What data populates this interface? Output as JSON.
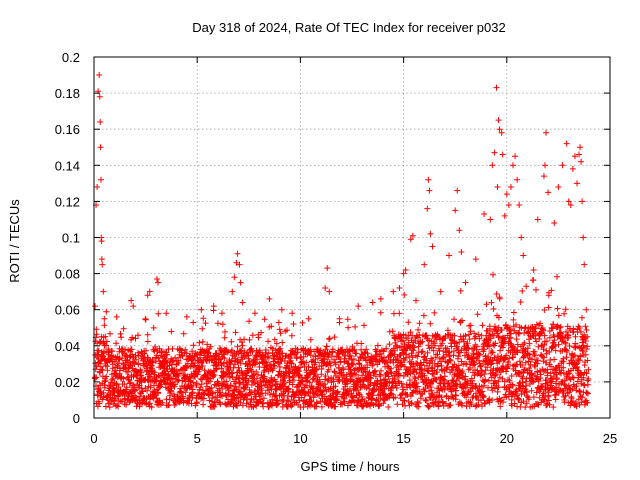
{
  "chart_data": {
    "type": "scatter",
    "title": "Day 318 of 2024, Rate Of TEC Index for receiver p032",
    "xlabel": "GPS time / hours",
    "ylabel": "ROTI / TECUs",
    "xlim": [
      0,
      25
    ],
    "ylim": [
      0,
      0.2
    ],
    "xticks": [
      0,
      5,
      10,
      15,
      20,
      25
    ],
    "xtick_labels": [
      "0",
      "5",
      "10",
      "15",
      "20",
      "25"
    ],
    "yticks": [
      0,
      0.02,
      0.04,
      0.06,
      0.08,
      0.1,
      0.12,
      0.14,
      0.16,
      0.18,
      0.2
    ],
    "ytick_labels": [
      "0",
      "0.02",
      "0.04",
      "0.06",
      "0.08",
      "0.1",
      "0.12",
      "0.14",
      "0.16",
      "0.18",
      "0.2"
    ],
    "grid": true,
    "marker": "+",
    "marker_color": "#ff0000",
    "series": [
      {
        "name": "ROTI",
        "points": [
          [
            0.05,
            0.062
          ],
          [
            0.1,
            0.118
          ],
          [
            0.15,
            0.128
          ],
          [
            0.2,
            0.181
          ],
          [
            0.25,
            0.19
          ],
          [
            0.28,
            0.178
          ],
          [
            0.3,
            0.164
          ],
          [
            0.32,
            0.15
          ],
          [
            0.34,
            0.132
          ],
          [
            0.35,
            0.1
          ],
          [
            0.37,
            0.098
          ],
          [
            0.38,
            0.088
          ],
          [
            0.4,
            0.085
          ],
          [
            0.45,
            0.07
          ],
          [
            0.5,
            0.055
          ],
          [
            1.1,
            0.056
          ],
          [
            1.8,
            0.065
          ],
          [
            1.9,
            0.062
          ],
          [
            2.6,
            0.068
          ],
          [
            2.7,
            0.07
          ],
          [
            3.05,
            0.077
          ],
          [
            3.1,
            0.075
          ],
          [
            3.5,
            0.058
          ],
          [
            4.5,
            0.056
          ],
          [
            5.2,
            0.06
          ],
          [
            5.8,
            0.062
          ],
          [
            6.2,
            0.058
          ],
          [
            6.7,
            0.07
          ],
          [
            6.8,
            0.078
          ],
          [
            6.9,
            0.086
          ],
          [
            6.95,
            0.091
          ],
          [
            7.05,
            0.085
          ],
          [
            7.1,
            0.075
          ],
          [
            7.2,
            0.064
          ],
          [
            7.8,
            0.058
          ],
          [
            8.5,
            0.066
          ],
          [
            9.1,
            0.06
          ],
          [
            9.6,
            0.058
          ],
          [
            10.4,
            0.055
          ],
          [
            11.2,
            0.072
          ],
          [
            11.3,
            0.083
          ],
          [
            11.4,
            0.07
          ],
          [
            11.9,
            0.055
          ],
          [
            12.8,
            0.062
          ],
          [
            13.5,
            0.064
          ],
          [
            13.9,
            0.066
          ],
          [
            14.5,
            0.07
          ],
          [
            14.8,
            0.072
          ],
          [
            15.0,
            0.08
          ],
          [
            15.1,
            0.082
          ],
          [
            15.35,
            0.099
          ],
          [
            15.45,
            0.101
          ],
          [
            15.6,
            0.065
          ],
          [
            16.0,
            0.085
          ],
          [
            16.15,
            0.116
          ],
          [
            16.2,
            0.132
          ],
          [
            16.25,
            0.126
          ],
          [
            16.3,
            0.102
          ],
          [
            16.4,
            0.095
          ],
          [
            16.8,
            0.07
          ],
          [
            17.2,
            0.09
          ],
          [
            17.5,
            0.115
          ],
          [
            17.6,
            0.126
          ],
          [
            17.7,
            0.104
          ],
          [
            17.8,
            0.092
          ],
          [
            18.0,
            0.075
          ],
          [
            18.5,
            0.088
          ],
          [
            18.9,
            0.113
          ],
          [
            19.2,
            0.11
          ],
          [
            19.3,
            0.14
          ],
          [
            19.4,
            0.147
          ],
          [
            19.5,
            0.183
          ],
          [
            19.55,
            0.128
          ],
          [
            19.6,
            0.165
          ],
          [
            19.65,
            0.16
          ],
          [
            19.75,
            0.158
          ],
          [
            19.8,
            0.146
          ],
          [
            19.9,
            0.112
          ],
          [
            20.0,
            0.124
          ],
          [
            20.1,
            0.118
          ],
          [
            20.2,
            0.128
          ],
          [
            20.3,
            0.14
          ],
          [
            20.4,
            0.145
          ],
          [
            20.5,
            0.132
          ],
          [
            20.6,
            0.118
          ],
          [
            20.7,
            0.1
          ],
          [
            20.8,
            0.09
          ],
          [
            21.3,
            0.082
          ],
          [
            21.5,
            0.11
          ],
          [
            21.8,
            0.134
          ],
          [
            21.85,
            0.14
          ],
          [
            21.9,
            0.158
          ],
          [
            22.0,
            0.125
          ],
          [
            22.3,
            0.108
          ],
          [
            22.5,
            0.128
          ],
          [
            22.7,
            0.14
          ],
          [
            22.9,
            0.152
          ],
          [
            23.0,
            0.12
          ],
          [
            23.1,
            0.118
          ],
          [
            23.2,
            0.138
          ],
          [
            23.3,
            0.145
          ],
          [
            23.4,
            0.13
          ],
          [
            23.5,
            0.146
          ],
          [
            23.55,
            0.15
          ],
          [
            23.6,
            0.142
          ],
          [
            23.65,
            0.12
          ],
          [
            23.7,
            0.1
          ],
          [
            23.75,
            0.085
          ],
          [
            23.85,
            0.06
          ],
          [
            23.9,
            0.045
          ]
        ]
      }
    ]
  }
}
